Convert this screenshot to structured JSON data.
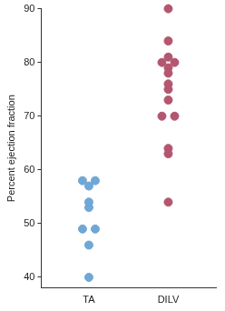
{
  "chart_data": {
    "type": "scatter",
    "y_label": "Percent ejection fraction",
    "categories": [
      "TA",
      "DILV"
    ],
    "values": [
      [
        58,
        58,
        57,
        54,
        53,
        49,
        49,
        46,
        40
      ],
      [
        90,
        84,
        81,
        80,
        80,
        79,
        78,
        76,
        75,
        73,
        70,
        70,
        64,
        63,
        54
      ]
    ],
    "colors": [
      "#6fa7d6",
      "#b3566f"
    ],
    "ylim": [
      38,
      90
    ],
    "yticks": [
      40,
      50,
      60,
      70,
      80,
      90
    ],
    "grid": false
  }
}
